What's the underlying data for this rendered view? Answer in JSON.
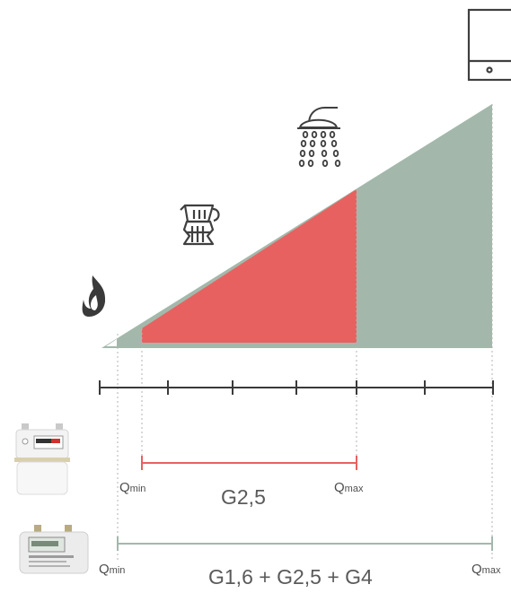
{
  "colors": {
    "range": "#a3b8ab",
    "highlight": "#e86161",
    "axis": "#3a3a3a",
    "icon": "#3f3f3f",
    "text": "#4d4d4d"
  },
  "icons": [
    "flame-icon",
    "moka-pot-icon",
    "shower-icon",
    "boiler-icon",
    "gas-meter-small-icon",
    "gas-meter-large-icon"
  ],
  "red_meter": {
    "q_min_prefix": "Q",
    "q_min_sub": "min",
    "q_max_prefix": "Q",
    "q_max_sub": "max",
    "label": "G2,5"
  },
  "green_meter": {
    "q_min_prefix": "Q",
    "q_min_sub": "min",
    "q_max_prefix": "Q",
    "q_max_sub": "max",
    "label": "G1,6 + G2,5 + G4"
  }
}
